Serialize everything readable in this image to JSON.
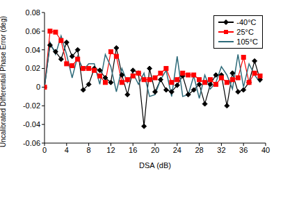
{
  "chart_data": {
    "type": "line",
    "x_label": "DSA (dB)",
    "y_label": "Uncalibrated Differential Phase Error (deg)",
    "x": [
      0,
      1,
      2,
      3,
      4,
      5,
      6,
      7,
      8,
      9,
      10,
      11,
      12,
      13,
      14,
      15,
      16,
      17,
      18,
      19,
      20,
      21,
      22,
      23,
      24,
      25,
      26,
      27,
      28,
      29,
      30,
      31,
      32,
      33,
      34,
      35,
      36,
      37,
      38,
      39
    ],
    "series": [
      {
        "name": "-40°C",
        "color": "#000000",
        "marker": "diamond",
        "values": [
          0,
          0.045,
          0.038,
          0.03,
          0.048,
          0.033,
          0.04,
          -0.003,
          0.003,
          0.02,
          0.018,
          0.01,
          0.005,
          0.042,
          0.013,
          -0.008,
          0.018,
          0.015,
          -0.042,
          0.02,
          -0.005,
          0.008,
          -0.003,
          -0.005,
          0.002,
          0.012,
          -0.008,
          -0.003,
          0.003,
          -0.018,
          0.003,
          0.013,
          0.013,
          -0.02,
          0.015,
          -0.005,
          -0.003,
          0.005,
          0.028,
          0.008
        ]
      },
      {
        "name": "25°C",
        "color": "#ff0000",
        "marker": "square",
        "values": [
          0,
          0.06,
          0.059,
          0.05,
          0.025,
          0.023,
          0.03,
          0.02,
          0.02,
          0.018,
          0.012,
          0.005,
          0.038,
          0.033,
          0.005,
          0.008,
          0.012,
          0.015,
          0.008,
          0.008,
          0.01,
          0.015,
          0.02,
          0.005,
          0.008,
          0.015,
          0.013,
          0.013,
          0.008,
          0.005,
          0.008,
          0.003,
          0.01,
          0.005,
          0.008,
          0.01,
          0.032,
          0.005,
          0.015,
          0.012
        ]
      },
      {
        "name": "105°C",
        "color": "#2e6b7a",
        "marker": "none",
        "values": [
          0,
          0.048,
          0.035,
          0.055,
          0.035,
          0.01,
          0.033,
          0.018,
          0.025,
          0.025,
          0.003,
          0.035,
          0.022,
          -0.005,
          0.02,
          0.005,
          0.015,
          0.003,
          0.015,
          -0.01,
          -0.008,
          0.008,
          0.018,
          -0.01,
          0.033,
          -0.01,
          -0.008,
          0.012,
          -0.012,
          0.013,
          -0.002,
          0.005,
          0.022,
          0.013,
          -0.002,
          0.035,
          0,
          0.025,
          0.013,
          0.005
        ]
      }
    ],
    "xlim": [
      0,
      40
    ],
    "xticks": [
      0,
      4,
      8,
      12,
      16,
      20,
      24,
      28,
      32,
      36,
      40
    ],
    "ylim": [
      -0.06,
      0.08
    ],
    "yticks": [
      -0.06,
      -0.04,
      -0.02,
      0,
      0.02,
      0.04,
      0.06,
      0.08
    ],
    "grid": false,
    "legend": "upper right"
  }
}
